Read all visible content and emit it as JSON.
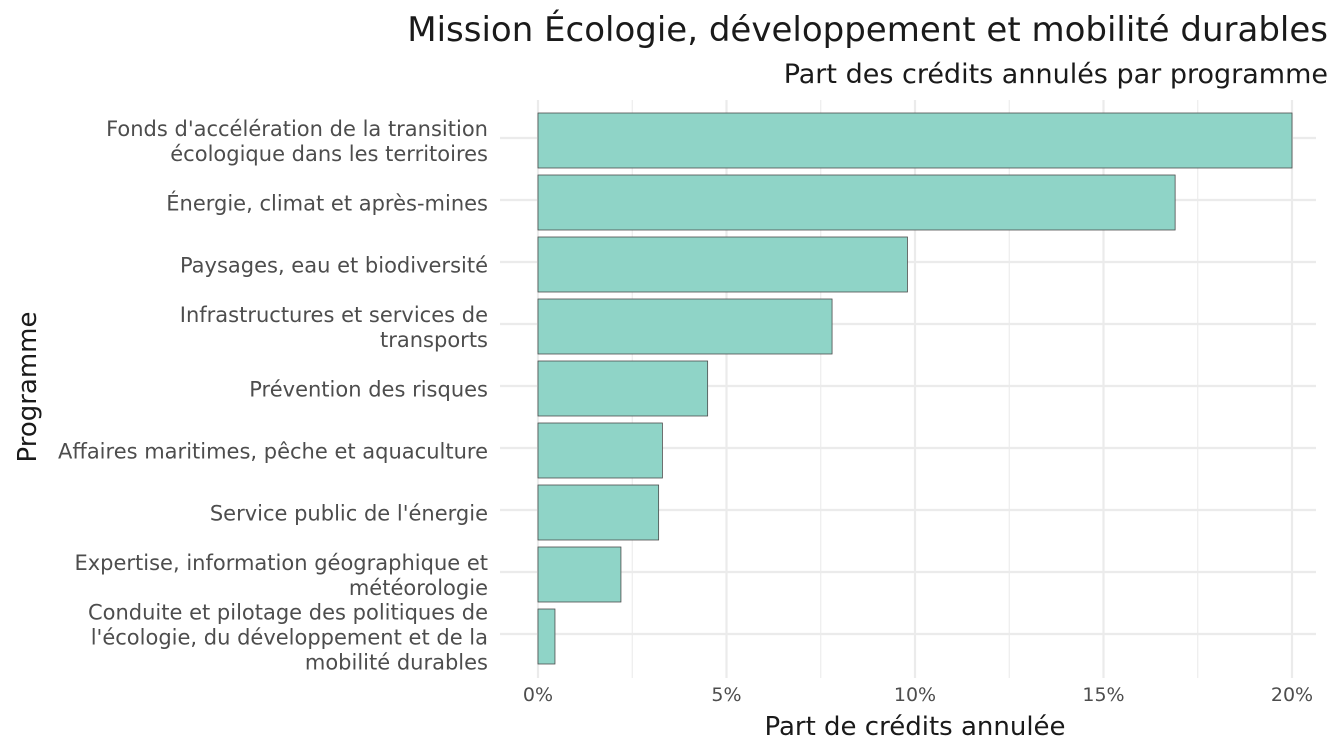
{
  "chart_data": {
    "type": "bar",
    "orientation": "horizontal",
    "title": "Mission Écologie, développement et mobilité durables",
    "subtitle": "Part des crédits annulés par programme",
    "xlabel": "Part de crédits annulée",
    "ylabel": "Programme",
    "xlim": [
      0,
      20
    ],
    "xticks": [
      "0%",
      "5%",
      "10%",
      "15%",
      "20%"
    ],
    "xtick_values": [
      0,
      5,
      10,
      15,
      20
    ],
    "grid": true,
    "bar_color": "#8fd4c7",
    "bar_border_color": "#4d4d4d",
    "categories": [
      [
        "Fonds d'accélération de la transition",
        "écologique dans les territoires"
      ],
      [
        "Énergie, climat et après-mines"
      ],
      [
        "Paysages, eau et biodiversité"
      ],
      [
        "Infrastructures et services de",
        "transports"
      ],
      [
        "Prévention des risques"
      ],
      [
        "Affaires maritimes, pêche et aquaculture"
      ],
      [
        "Service public de l'énergie"
      ],
      [
        "Expertise, information géographique et",
        "météorologie"
      ],
      [
        "Conduite et pilotage des politiques de",
        "l'écologie, du développement et de la",
        "mobilité durables"
      ]
    ],
    "values": [
      20.0,
      16.9,
      9.8,
      7.8,
      4.5,
      3.3,
      3.2,
      2.2,
      0.45
    ]
  }
}
